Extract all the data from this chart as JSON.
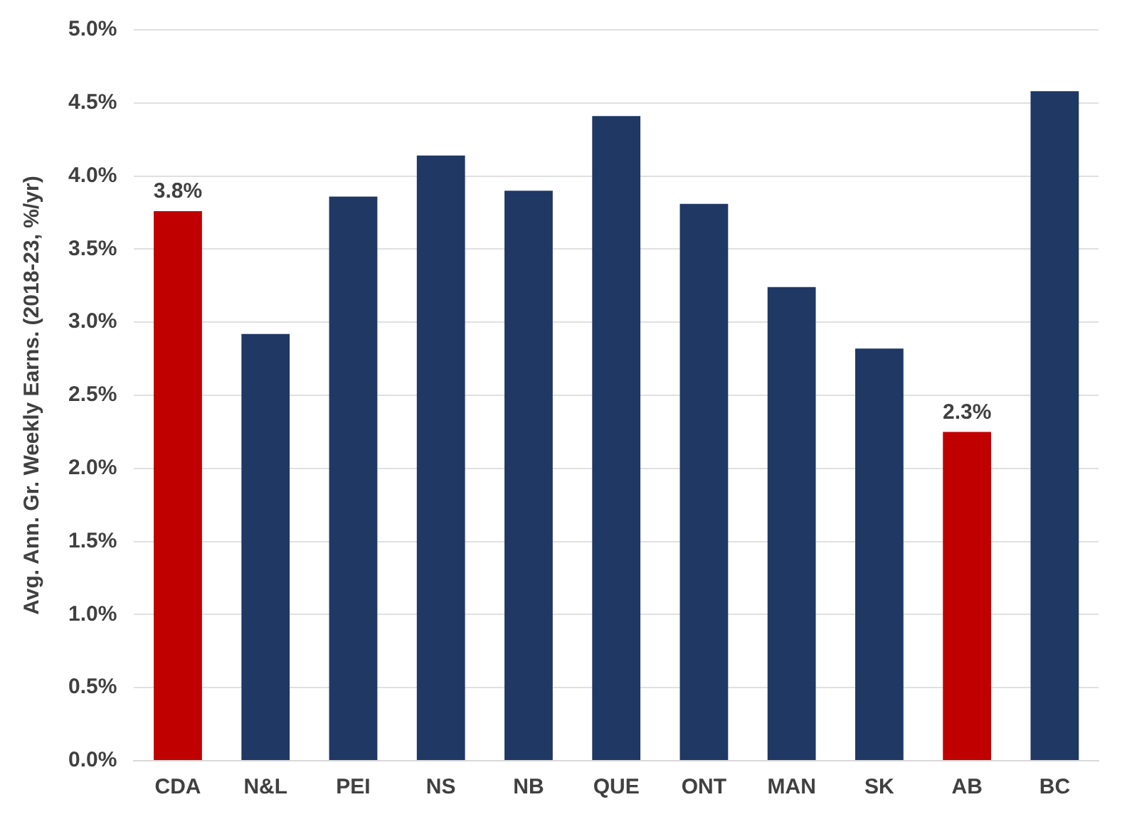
{
  "chart_data": {
    "type": "bar",
    "ylabel": "Avg. Ann. Gr. Weekly Earns. (2018-23, %/yr)",
    "categories": [
      "CDA",
      "N&L",
      "PEI",
      "NS",
      "NB",
      "QUE",
      "ONT",
      "MAN",
      "SK",
      "AB",
      "BC"
    ],
    "values": [
      3.76,
      2.92,
      3.86,
      4.14,
      3.9,
      4.41,
      3.81,
      3.24,
      2.82,
      2.25,
      4.58
    ],
    "colors": [
      "#c00000",
      "#1f3864",
      "#1f3864",
      "#1f3864",
      "#1f3864",
      "#1f3864",
      "#1f3864",
      "#1f3864",
      "#1f3864",
      "#c00000",
      "#1f3864"
    ],
    "value_labels": [
      "3.8%",
      null,
      null,
      null,
      null,
      null,
      null,
      null,
      null,
      "2.3%",
      null
    ],
    "ylim": [
      0,
      5
    ],
    "yticks": [
      {
        "value": 0,
        "label": "0.0%"
      },
      {
        "value": 0.5,
        "label": "0.5%"
      },
      {
        "value": 1,
        "label": "1.0%"
      },
      {
        "value": 1.5,
        "label": "1.5%"
      },
      {
        "value": 2,
        "label": "2.0%"
      },
      {
        "value": 2.5,
        "label": "2.5%"
      },
      {
        "value": 3,
        "label": "3.0%"
      },
      {
        "value": 3.5,
        "label": "3.5%"
      },
      {
        "value": 4,
        "label": "4.0%"
      },
      {
        "value": 4.5,
        "label": "4.5%"
      },
      {
        "value": 5,
        "label": "5.0%"
      }
    ],
    "grid": "y"
  }
}
